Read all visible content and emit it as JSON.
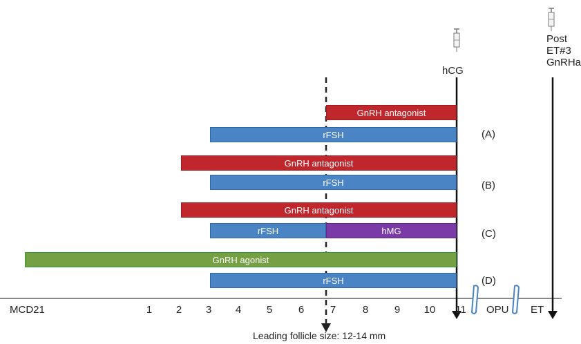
{
  "axis": {
    "days": [
      "1",
      "2",
      "3",
      "4",
      "5",
      "6",
      "7",
      "8",
      "9",
      "10",
      "11"
    ],
    "start_label": "MCD21",
    "opu_label": "OPU",
    "et_label": "ET"
  },
  "triggers": {
    "hcg_label": "hCG",
    "post_et_label": [
      "Post",
      "ET#3",
      "GnRHa"
    ]
  },
  "leading_follicle_label": "Leading follicle size: 12-14 mm",
  "groups": [
    "(A)",
    "(B)",
    "(C)",
    "(D)"
  ],
  "bars": {
    "a_antagonist": "GnRH antagonist",
    "a_rfsh": "rFSH",
    "b_antagonist": "GnRH antagonist",
    "b_rfsh": "rFSH",
    "c_antagonist": "GnRH antagonist",
    "c_rfsh": "rFSH",
    "c_hmg": "hMG",
    "d_agonist": "GnRH agonist",
    "d_rfsh": "rFSH"
  },
  "colors": {
    "antagonist": "#c0272d",
    "rfsh": "#4a84c4",
    "hmg": "#7a3aa8",
    "agonist": "#76a044",
    "axis": "#888888"
  }
}
